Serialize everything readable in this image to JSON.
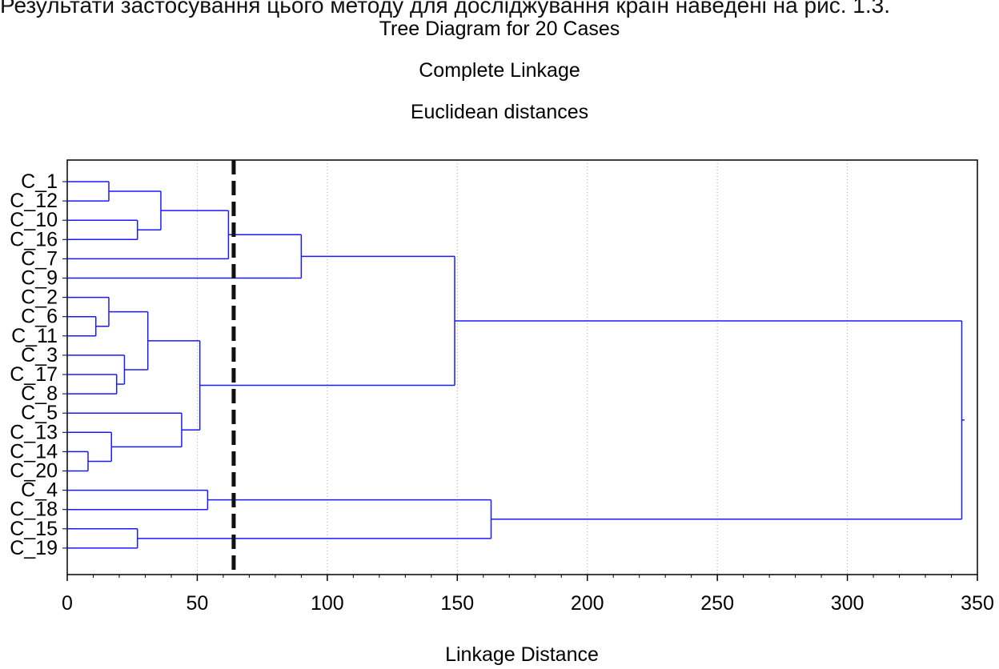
{
  "page": {
    "cut_caption": "Результати застосування цього методу для досліджування країн наведені на рис. 1.3."
  },
  "chart_data": {
    "type": "dendrogram",
    "title": "Tree Diagram for 20 Cases",
    "subtitle_1": "Complete Linkage",
    "subtitle_2": "Euclidean distances",
    "xlabel": "Linkage Distance",
    "xlim": [
      0,
      350
    ],
    "xticks": [
      0,
      50,
      100,
      150,
      200,
      250,
      300,
      350
    ],
    "grid": true,
    "leaves": [
      "C_1",
      "C_12",
      "C_10",
      "C_16",
      "C_7",
      "C_9",
      "C_2",
      "C_6",
      "C_11",
      "C_3",
      "C_17",
      "C_8",
      "C_5",
      "C_13",
      "C_14",
      "C_20",
      "C_4",
      "C_18",
      "C_15",
      "C_19"
    ],
    "merges": [
      {
        "left": "C_1",
        "right": "C_12",
        "distance": 16
      },
      {
        "left": "C_10",
        "right": "C_16",
        "distance": 27
      },
      {
        "left": "m0",
        "right": "m1",
        "distance": 36
      },
      {
        "left": "m2",
        "right": "C_7",
        "distance": 62
      },
      {
        "left": "m3",
        "right": "C_9",
        "distance": 90
      },
      {
        "left": "C_6",
        "right": "C_11",
        "distance": 11
      },
      {
        "left": "C_2",
        "right": "m5",
        "distance": 16
      },
      {
        "left": "C_17",
        "right": "C_8",
        "distance": 19
      },
      {
        "left": "C_3",
        "right": "m7",
        "distance": 22
      },
      {
        "left": "m6",
        "right": "m8",
        "distance": 31
      },
      {
        "left": "C_14",
        "right": "C_20",
        "distance": 8
      },
      {
        "left": "C_13",
        "right": "m10",
        "distance": 17
      },
      {
        "left": "C_5",
        "right": "m11",
        "distance": 44
      },
      {
        "left": "m9",
        "right": "m12",
        "distance": 51
      },
      {
        "left": "m4",
        "right": "m13",
        "distance": 149
      },
      {
        "left": "C_4",
        "right": "C_18",
        "distance": 54
      },
      {
        "left": "C_15",
        "right": "C_19",
        "distance": 27
      },
      {
        "left": "m15",
        "right": "m16",
        "distance": 163
      },
      {
        "left": "m14",
        "right": "m17",
        "distance": 344
      }
    ],
    "cutoff_line": 64,
    "colors": {
      "tree": "#1a1aff",
      "cutoff": "#111111",
      "grid": "#aaaaaa"
    }
  }
}
